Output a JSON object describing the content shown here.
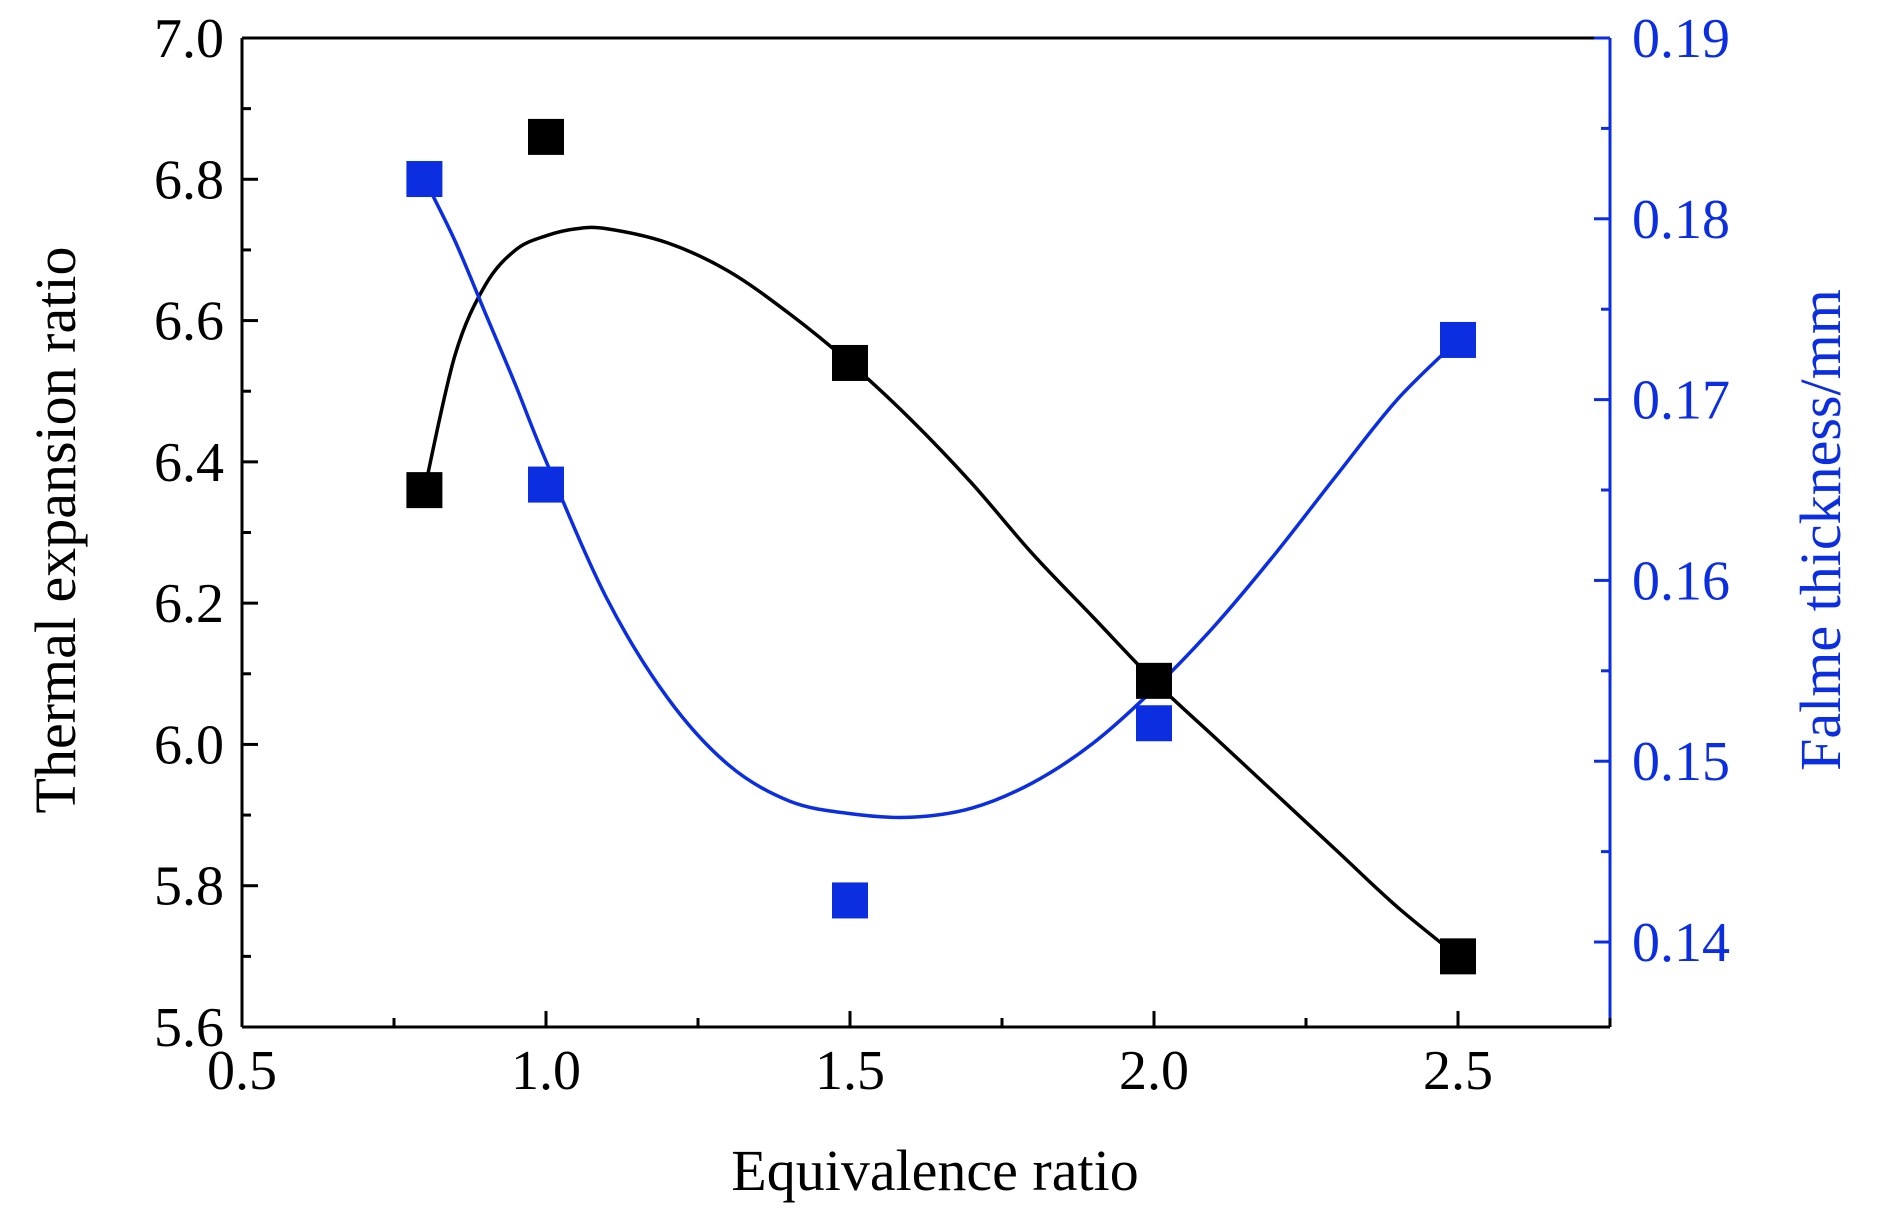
{
  "chart_data": {
    "type": "scatter",
    "xlabel": "Equivalence ratio",
    "ylabel_left": "Thermal expansion ratio",
    "ylabel_right": "Falme thickness/mm",
    "xlim": [
      0.5,
      2.75
    ],
    "ylim_left": [
      5.6,
      7.0
    ],
    "ylim_right": [
      0.1353,
      0.19
    ],
    "x_ticks": [
      "0.5",
      "1.0",
      "1.5",
      "2.0",
      "2.5"
    ],
    "y_left_ticks": [
      "5.6",
      "5.8",
      "6.0",
      "6.2",
      "6.4",
      "6.6",
      "6.8",
      "7.0"
    ],
    "y_right_ticks": [
      "0.14",
      "0.15",
      "0.16",
      "0.17",
      "0.18",
      "0.19"
    ],
    "grid": false,
    "series": [
      {
        "axis": "left",
        "color": "#000000",
        "marker": "square",
        "points": [
          {
            "x": 0.8,
            "y": 6.36
          },
          {
            "x": 1.0,
            "y": 6.86
          },
          {
            "x": 1.5,
            "y": 6.54
          },
          {
            "x": 2.0,
            "y": 6.09
          },
          {
            "x": 2.5,
            "y": 5.7
          }
        ],
        "fit_curve": [
          [
            0.8,
            6.36
          ],
          [
            0.85,
            6.55
          ],
          [
            0.9,
            6.65
          ],
          [
            0.95,
            6.7
          ],
          [
            1.0,
            6.72
          ],
          [
            1.05,
            6.73
          ],
          [
            1.1,
            6.73
          ],
          [
            1.2,
            6.71
          ],
          [
            1.3,
            6.67
          ],
          [
            1.4,
            6.61
          ],
          [
            1.5,
            6.54
          ],
          [
            1.6,
            6.46
          ],
          [
            1.7,
            6.37
          ],
          [
            1.8,
            6.27
          ],
          [
            1.9,
            6.18
          ],
          [
            2.0,
            6.09
          ],
          [
            2.1,
            6.01
          ],
          [
            2.2,
            5.93
          ],
          [
            2.3,
            5.85
          ],
          [
            2.4,
            5.77
          ],
          [
            2.5,
            5.7
          ]
        ]
      },
      {
        "axis": "right",
        "color": "#0a2ee0",
        "marker": "square",
        "points": [
          {
            "x": 0.8,
            "y": 0.1822
          },
          {
            "x": 1.0,
            "y": 0.1653
          },
          {
            "x": 1.5,
            "y": 0.1423
          },
          {
            "x": 2.0,
            "y": 0.1521
          },
          {
            "x": 2.5,
            "y": 0.1733
          }
        ],
        "fit_curve": [
          [
            0.8,
            0.1822
          ],
          [
            0.85,
            0.1788
          ],
          [
            0.9,
            0.1748
          ],
          [
            0.95,
            0.1708
          ],
          [
            1.0,
            0.1666
          ],
          [
            1.1,
            0.159
          ],
          [
            1.2,
            0.1535
          ],
          [
            1.3,
            0.1498
          ],
          [
            1.4,
            0.1478
          ],
          [
            1.5,
            0.1471
          ],
          [
            1.6,
            0.1469
          ],
          [
            1.7,
            0.1474
          ],
          [
            1.8,
            0.1488
          ],
          [
            1.9,
            0.151
          ],
          [
            2.0,
            0.154
          ],
          [
            2.1,
            0.1575
          ],
          [
            2.2,
            0.1615
          ],
          [
            2.3,
            0.1658
          ],
          [
            2.4,
            0.17
          ],
          [
            2.5,
            0.1733
          ]
        ]
      }
    ]
  }
}
